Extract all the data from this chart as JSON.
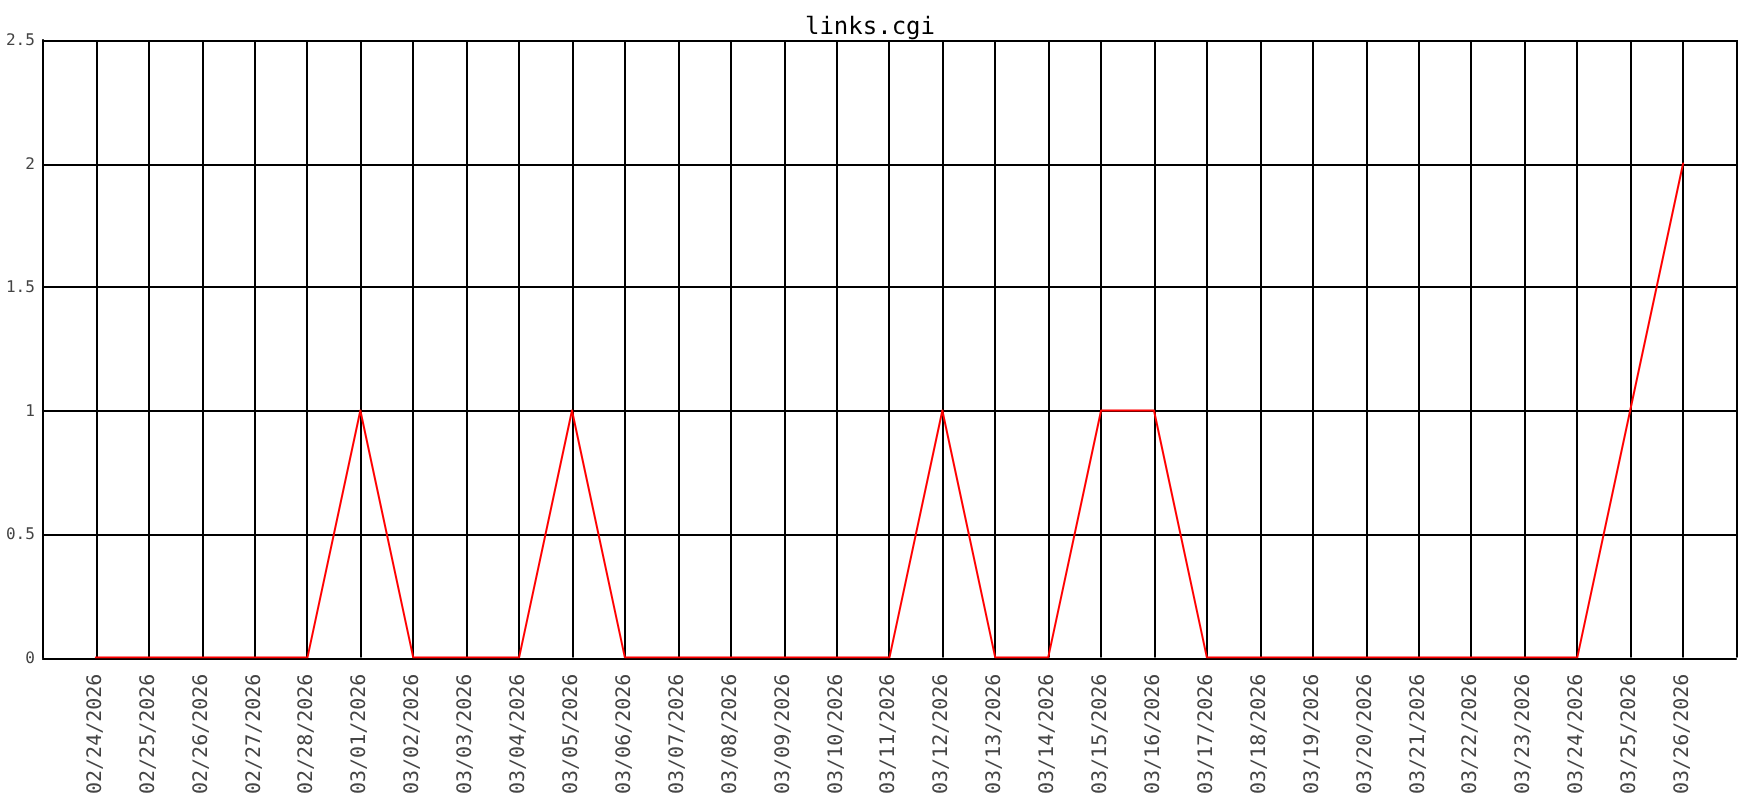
{
  "chart_data": {
    "type": "line",
    "title": "links.cgi",
    "x": [
      "2026-02-24",
      "2026-02-25",
      "2026-02-26",
      "2026-02-27",
      "2026-02-28",
      "2026-03-01",
      "2026-03-02",
      "2026-03-03",
      "2026-03-04",
      "2026-03-05",
      "2026-03-06",
      "2026-03-07",
      "2026-03-08",
      "2026-03-09",
      "2026-03-10",
      "2026-03-11",
      "2026-03-12",
      "2026-03-13",
      "2026-03-14",
      "2026-03-15",
      "2026-03-16",
      "2026-03-17",
      "2026-03-18",
      "2026-03-19",
      "2026-03-20",
      "2026-03-21",
      "2026-03-22",
      "2026-03-23",
      "2026-03-24",
      "2026-03-25",
      "2026-03-26"
    ],
    "series": [
      {
        "color": "#ff0000",
        "values": [
          0,
          0,
          0,
          0,
          0,
          1,
          0,
          0,
          0,
          1,
          0,
          0,
          0,
          0,
          0,
          0,
          1,
          0,
          0,
          1,
          1,
          0,
          0,
          0,
          0,
          0,
          0,
          0,
          0,
          1,
          2
        ]
      }
    ],
    "xlim": [
      "2026-02-23",
      "2026-03-27"
    ],
    "xticks": [
      {
        "value": "2026-02-24",
        "label": "02/24/2026"
      },
      {
        "value": "2026-02-25",
        "label": "02/25/2026"
      },
      {
        "value": "2026-02-26",
        "label": "02/26/2026"
      },
      {
        "value": "2026-02-27",
        "label": "02/27/2026"
      },
      {
        "value": "2026-02-28",
        "label": "02/28/2026"
      },
      {
        "value": "2026-03-01",
        "label": "03/01/2026"
      },
      {
        "value": "2026-03-02",
        "label": "03/02/2026"
      },
      {
        "value": "2026-03-03",
        "label": "03/03/2026"
      },
      {
        "value": "2026-03-04",
        "label": "03/04/2026"
      },
      {
        "value": "2026-03-05",
        "label": "03/05/2026"
      },
      {
        "value": "2026-03-06",
        "label": "03/06/2026"
      },
      {
        "value": "2026-03-07",
        "label": "03/07/2026"
      },
      {
        "value": "2026-03-08",
        "label": "03/08/2026"
      },
      {
        "value": "2026-03-09",
        "label": "03/09/2026"
      },
      {
        "value": "2026-03-10",
        "label": "03/10/2026"
      },
      {
        "value": "2026-03-11",
        "label": "03/11/2026"
      },
      {
        "value": "2026-03-12",
        "label": "03/12/2026"
      },
      {
        "value": "2026-03-13",
        "label": "03/13/2026"
      },
      {
        "value": "2026-03-14",
        "label": "03/14/2026"
      },
      {
        "value": "2026-03-15",
        "label": "03/15/2026"
      },
      {
        "value": "2026-03-16",
        "label": "03/16/2026"
      },
      {
        "value": "2026-03-17",
        "label": "03/17/2026"
      },
      {
        "value": "2026-03-18",
        "label": "03/18/2026"
      },
      {
        "value": "2026-03-19",
        "label": "03/19/2026"
      },
      {
        "value": "2026-03-20",
        "label": "03/20/2026"
      },
      {
        "value": "2026-03-21",
        "label": "03/21/2026"
      },
      {
        "value": "2026-03-22",
        "label": "03/22/2026"
      },
      {
        "value": "2026-03-23",
        "label": "03/23/2026"
      },
      {
        "value": "2026-03-24",
        "label": "03/24/2026"
      },
      {
        "value": "2026-03-25",
        "label": "03/25/2026"
      },
      {
        "value": "2026-03-26",
        "label": "03/26/2026"
      }
    ],
    "ylim": [
      0,
      2.5
    ],
    "yticks": [
      0,
      0.5,
      1,
      1.5,
      2,
      2.5
    ],
    "grid": true,
    "marker": "none",
    "line_style": "solid"
  }
}
